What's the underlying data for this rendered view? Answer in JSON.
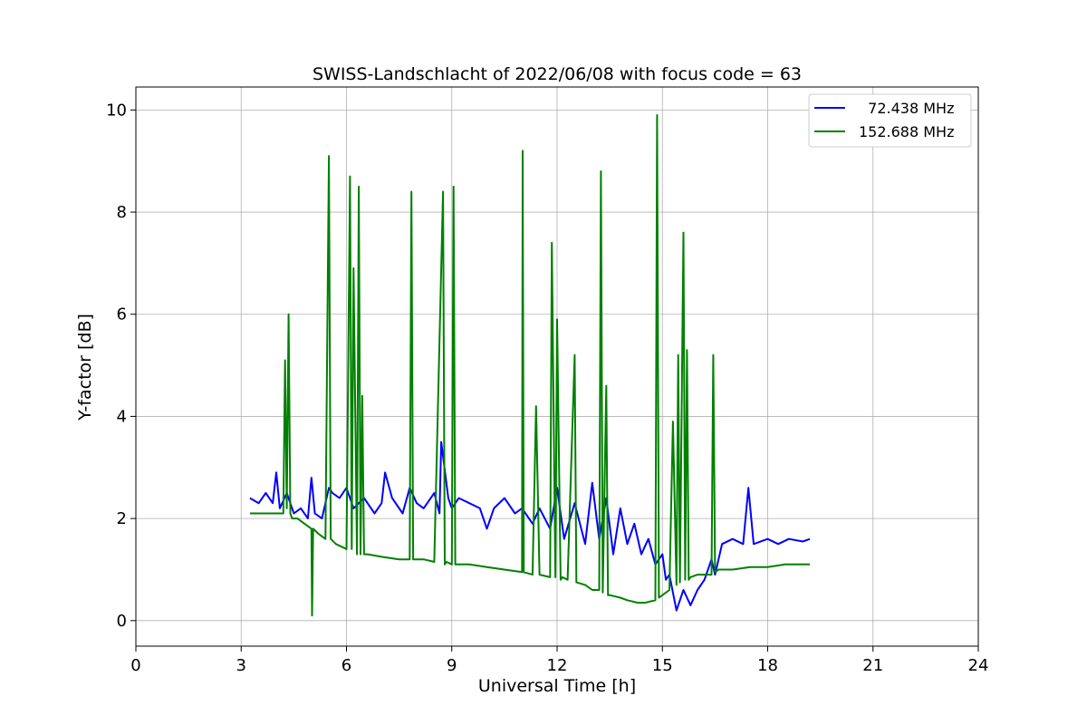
{
  "chart_data": {
    "type": "line",
    "title": "SWISS-Landschlacht of 2022/06/08 with focus code = 63",
    "xlabel": "Universal Time [h]",
    "ylabel": "Y-factor [dB]",
    "xlim": [
      0,
      24
    ],
    "ylim": [
      -0.5,
      10.45
    ],
    "xticks": [
      0,
      3,
      6,
      9,
      12,
      15,
      18,
      21,
      24
    ],
    "yticks": [
      0,
      2,
      4,
      6,
      8,
      10
    ],
    "grid": true,
    "legend_position": "top-right",
    "series": [
      {
        "name": "  72.438 MHz",
        "color": "#0000ff",
        "x": [
          3.25,
          3.5,
          3.7,
          3.9,
          4.0,
          4.1,
          4.3,
          4.5,
          4.7,
          4.9,
          5.0,
          5.1,
          5.3,
          5.5,
          5.6,
          5.8,
          6.0,
          6.2,
          6.5,
          6.8,
          7.0,
          7.1,
          7.3,
          7.6,
          7.8,
          8.0,
          8.2,
          8.5,
          8.65,
          8.7,
          8.9,
          9.0,
          9.2,
          9.5,
          9.8,
          10.0,
          10.2,
          10.5,
          10.8,
          11.0,
          11.3,
          11.5,
          11.8,
          12.0,
          12.2,
          12.5,
          12.8,
          13.0,
          13.2,
          13.4,
          13.6,
          13.8,
          14.0,
          14.2,
          14.4,
          14.6,
          14.8,
          15.0,
          15.1,
          15.2,
          15.4,
          15.6,
          15.8,
          16.0,
          16.2,
          16.4,
          16.5,
          16.7,
          17.0,
          17.3,
          17.45,
          17.6,
          18.0,
          18.3,
          18.6,
          19.0,
          19.2
        ],
        "y": [
          2.4,
          2.3,
          2.5,
          2.3,
          2.9,
          2.2,
          2.5,
          2.1,
          2.2,
          2.0,
          2.8,
          2.1,
          2.0,
          2.6,
          2.5,
          2.4,
          2.6,
          2.2,
          2.4,
          2.1,
          2.3,
          2.9,
          2.4,
          2.1,
          2.6,
          2.3,
          2.2,
          2.5,
          2.1,
          3.5,
          2.4,
          2.2,
          2.4,
          2.3,
          2.2,
          1.8,
          2.2,
          2.4,
          2.1,
          2.2,
          1.9,
          2.2,
          1.8,
          2.6,
          1.6,
          2.3,
          1.5,
          2.7,
          1.6,
          2.4,
          1.3,
          2.2,
          1.5,
          1.9,
          1.3,
          1.6,
          1.1,
          1.3,
          0.8,
          0.9,
          0.2,
          0.6,
          0.3,
          0.6,
          0.8,
          1.2,
          0.9,
          1.5,
          1.6,
          1.5,
          2.6,
          1.5,
          1.6,
          1.5,
          1.6,
          1.55,
          1.6
        ]
      },
      {
        "name": "152.688 MHz",
        "color": "#008000",
        "x": [
          3.25,
          3.5,
          3.8,
          4.0,
          4.2,
          4.25,
          4.3,
          4.35,
          4.4,
          4.45,
          4.6,
          4.8,
          5.0,
          5.02,
          5.05,
          5.2,
          5.4,
          5.5,
          5.55,
          5.7,
          6.0,
          6.1,
          6.15,
          6.2,
          6.3,
          6.35,
          6.4,
          6.45,
          6.5,
          6.6,
          7.0,
          7.5,
          7.8,
          7.85,
          7.9,
          8.2,
          8.5,
          8.75,
          8.8,
          8.85,
          9.0,
          9.05,
          9.1,
          9.5,
          10.0,
          10.5,
          11.0,
          11.02,
          11.05,
          11.3,
          11.4,
          11.5,
          11.8,
          11.85,
          11.95,
          12.0,
          12.1,
          12.15,
          12.3,
          12.5,
          12.55,
          12.8,
          13.0,
          13.2,
          13.25,
          13.3,
          13.4,
          13.45,
          13.5,
          13.8,
          14.0,
          14.3,
          14.5,
          14.8,
          14.85,
          14.9,
          15.0,
          15.2,
          15.3,
          15.4,
          15.45,
          15.5,
          15.6,
          15.65,
          15.7,
          15.75,
          15.8,
          16.0,
          16.2,
          16.4,
          16.45,
          16.5,
          16.6,
          17.0,
          17.5,
          18.0,
          18.5,
          19.0,
          19.2
        ],
        "y": [
          2.1,
          2.1,
          2.1,
          2.1,
          2.1,
          5.1,
          2.2,
          6.0,
          2.1,
          2.0,
          2.0,
          1.9,
          1.8,
          0.1,
          1.8,
          1.7,
          1.6,
          9.1,
          1.6,
          1.5,
          1.4,
          8.7,
          1.4,
          6.9,
          1.3,
          8.5,
          1.3,
          4.4,
          1.3,
          1.3,
          1.25,
          1.2,
          1.2,
          8.4,
          1.2,
          1.2,
          1.15,
          8.4,
          1.1,
          1.15,
          1.1,
          8.5,
          1.1,
          1.1,
          1.05,
          1.0,
          0.95,
          9.2,
          0.95,
          0.9,
          4.2,
          0.9,
          0.85,
          7.4,
          0.85,
          5.9,
          0.8,
          0.85,
          0.8,
          5.2,
          0.75,
          0.7,
          0.6,
          0.6,
          8.8,
          0.55,
          4.6,
          0.5,
          0.5,
          0.45,
          0.4,
          0.35,
          0.35,
          0.4,
          9.9,
          0.45,
          0.5,
          0.6,
          3.9,
          0.7,
          5.2,
          0.75,
          7.6,
          0.8,
          5.3,
          0.8,
          0.85,
          0.9,
          0.9,
          0.9,
          5.2,
          0.95,
          1.0,
          1.0,
          1.05,
          1.05,
          1.1,
          1.1,
          1.1
        ]
      }
    ]
  }
}
